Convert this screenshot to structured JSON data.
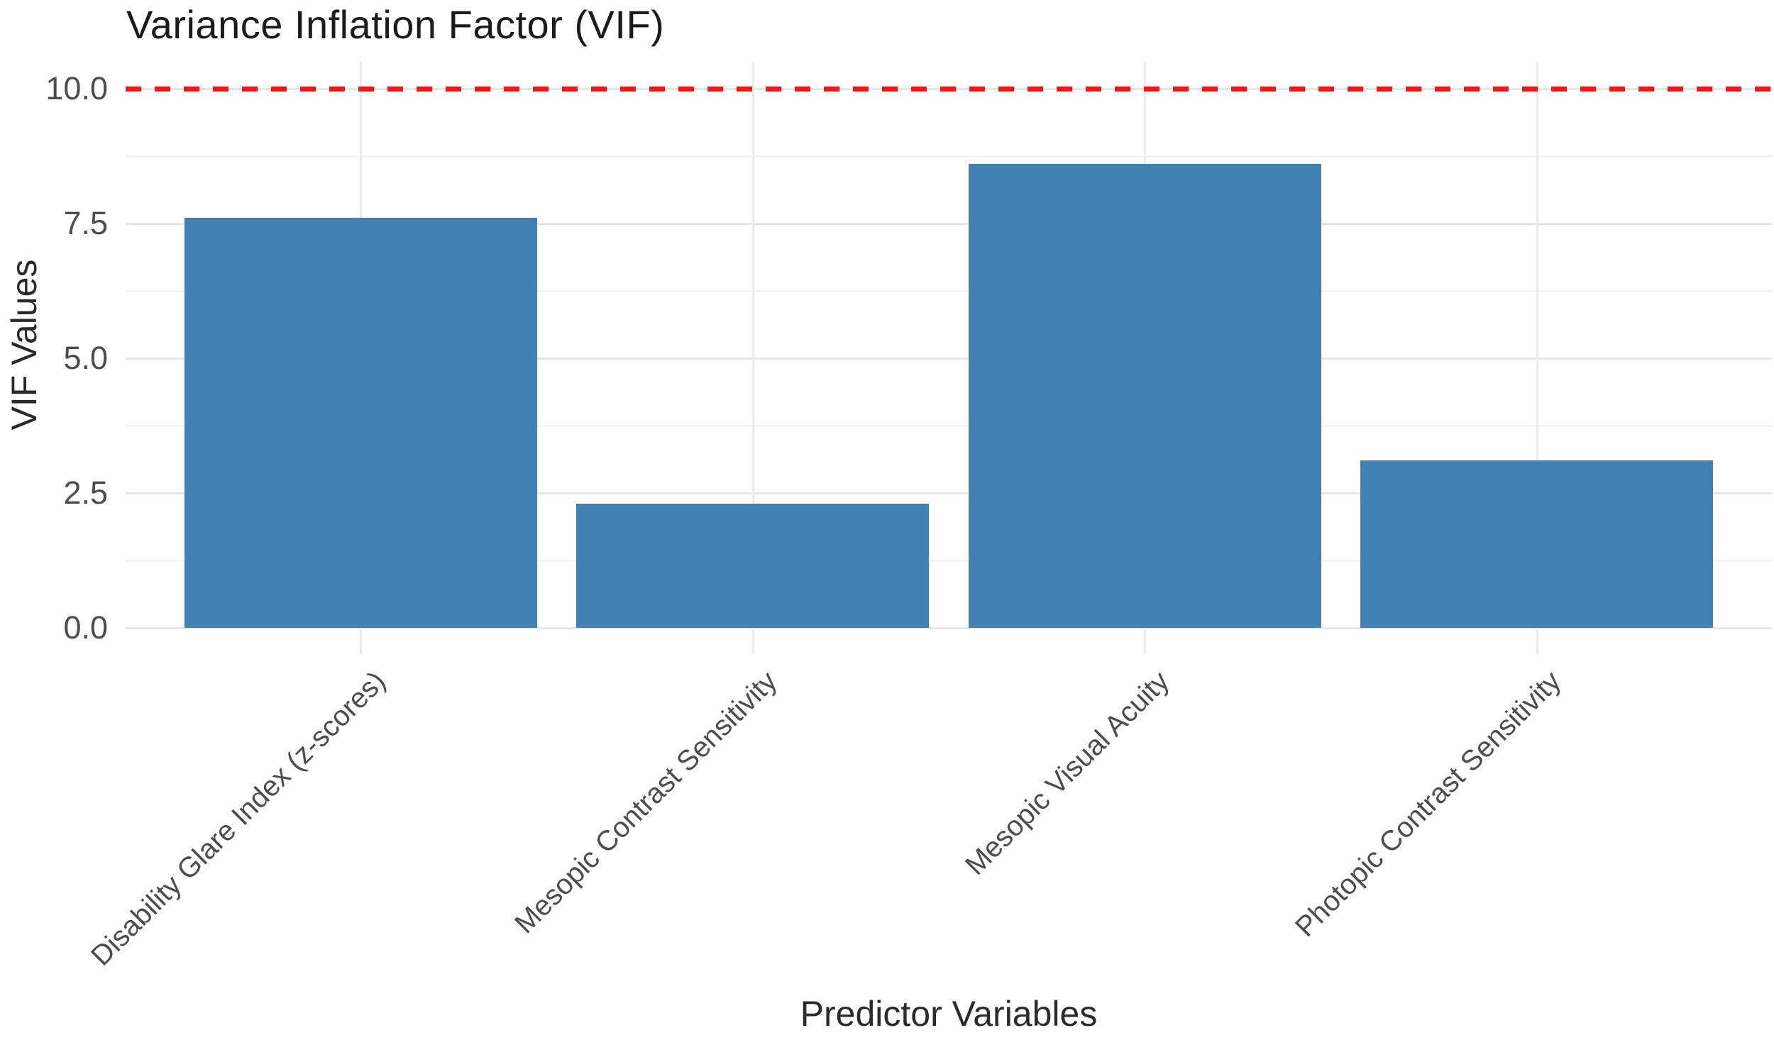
{
  "chart_data": {
    "type": "bar",
    "title": "Variance Inflation Factor (VIF)",
    "xlabel": "Predictor Variables",
    "ylabel": "VIF Values",
    "categories": [
      "Disability Glare Index (z-scores)",
      "Mesopic Contrast Sensitivity",
      "Mesopic Visual Acuity",
      "Photopic Contrast Sensitivity"
    ],
    "values": [
      7.6,
      2.3,
      8.6,
      3.1
    ],
    "yticks": [
      {
        "label": "0.0",
        "value": 0
      },
      {
        "label": "2.5",
        "value": 2.5
      },
      {
        "label": "5.0",
        "value": 5
      },
      {
        "label": "7.5",
        "value": 7.5
      },
      {
        "label": "10.0",
        "value": 10
      }
    ],
    "minor_gridlines": [
      1.25,
      3.75,
      6.25,
      8.75
    ],
    "ylim": [
      0,
      10.5
    ],
    "grid": true,
    "legend": false,
    "bar_color": "#4381b5",
    "threshold_line": {
      "value": 10,
      "style": "dashed",
      "color": "#fb1313"
    },
    "tick_label_color": "#4d4d4d",
    "axis_title_color": "#2a2a2a",
    "title_color": "#1b1b1b"
  }
}
